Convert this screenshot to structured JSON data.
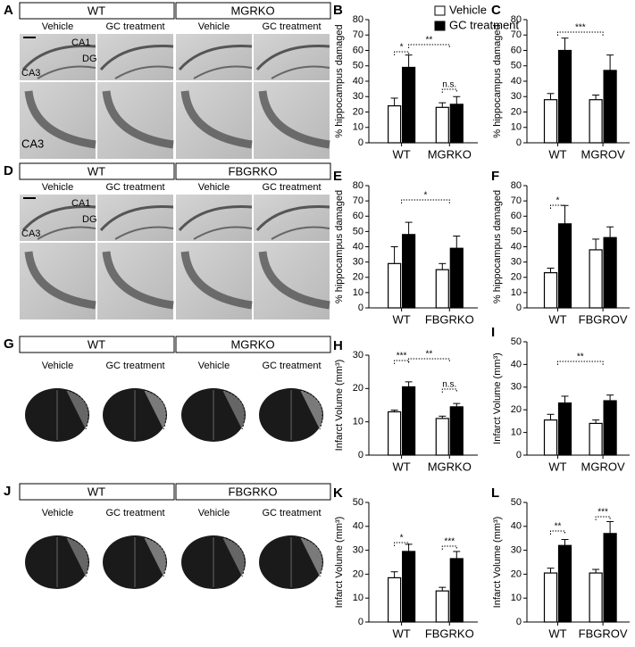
{
  "panels": [
    {
      "panel_label": "A",
      "groups": [
        "WT",
        "MGRKO"
      ],
      "conditions": [
        "Vehicle",
        "GC treatment",
        "Vehicle",
        "GC treatment"
      ],
      "regions": [
        "CA1",
        "DG",
        "CA3",
        "CA3"
      ]
    },
    {
      "panel_label": "D",
      "groups": [
        "WT",
        "FBGRKO"
      ],
      "conditions": [
        "Vehicle",
        "GC treatment",
        "Vehicle",
        "GC treatment"
      ],
      "regions": [
        "CA1",
        "DG",
        "CA3"
      ]
    },
    {
      "panel_label": "G",
      "groups": [
        "WT",
        "MGRKO"
      ],
      "conditions": [
        "Vehicle",
        "GC treatment",
        "Vehicle",
        "GC treatment"
      ]
    },
    {
      "panel_label": "J",
      "groups": [
        "WT",
        "FBGRKO"
      ],
      "conditions": [
        "Vehicle",
        "GC treatment",
        "Vehicle",
        "GC treatment"
      ]
    }
  ],
  "chart_data": [
    {
      "type": "bar",
      "panel_label": "B",
      "y_label": "% hippocampus damaged",
      "categories": [
        "WT",
        "MGRKO"
      ],
      "series": [
        {
          "name": "Vehicle",
          "color": "#ffffff",
          "values": [
            24,
            23
          ],
          "errors": [
            5,
            3
          ]
        },
        {
          "name": "GC treatment",
          "color": "#000000",
          "values": [
            49,
            25
          ],
          "errors": [
            8,
            5
          ]
        }
      ],
      "ylim": [
        0,
        80
      ],
      "yticks": [
        0,
        10,
        20,
        30,
        40,
        50,
        60,
        70,
        80
      ],
      "annotations": [
        "*",
        "**",
        "n.s."
      ]
    },
    {
      "type": "bar",
      "panel_label": "C",
      "y_label": "% hippocampus damaged",
      "categories": [
        "WT",
        "MGROV"
      ],
      "series": [
        {
          "color": "#ffffff",
          "values": [
            28,
            28
          ],
          "errors": [
            4,
            3
          ]
        },
        {
          "color": "#000000",
          "values": [
            60,
            47
          ],
          "errors": [
            8,
            10
          ]
        }
      ],
      "ylim": [
        0,
        80
      ],
      "yticks": [
        0,
        10,
        20,
        30,
        40,
        50,
        60,
        70,
        80
      ],
      "annotations": [
        "***"
      ]
    },
    {
      "type": "bar",
      "panel_label": "E",
      "y_label": "% hippocampus damaged",
      "categories": [
        "WT",
        "FBGRKO"
      ],
      "series": [
        {
          "color": "#ffffff",
          "values": [
            29,
            25
          ],
          "errors": [
            11,
            4
          ]
        },
        {
          "color": "#000000",
          "values": [
            48,
            39
          ],
          "errors": [
            8,
            8
          ]
        }
      ],
      "ylim": [
        0,
        80
      ],
      "yticks": [
        0,
        10,
        20,
        30,
        40,
        50,
        60,
        70,
        80
      ],
      "annotations": [
        "*"
      ]
    },
    {
      "type": "bar",
      "panel_label": "F",
      "y_label": "% hippocampus damaged",
      "categories": [
        "WT",
        "FBGROV"
      ],
      "series": [
        {
          "color": "#ffffff",
          "values": [
            23,
            38
          ],
          "errors": [
            3,
            7
          ]
        },
        {
          "color": "#000000",
          "values": [
            55,
            46
          ],
          "errors": [
            12,
            7
          ]
        }
      ],
      "ylim": [
        0,
        80
      ],
      "yticks": [
        0,
        10,
        20,
        30,
        40,
        50,
        60,
        70,
        80
      ],
      "annotations": [
        "*"
      ]
    },
    {
      "type": "bar",
      "panel_label": "H",
      "y_label": "Infarct Volume (mm³)",
      "categories": [
        "WT",
        "MGRKO"
      ],
      "series": [
        {
          "color": "#ffffff",
          "values": [
            13,
            11
          ],
          "errors": [
            0.5,
            0.7
          ]
        },
        {
          "color": "#000000",
          "values": [
            20.5,
            14.5
          ],
          "errors": [
            1.5,
            1
          ]
        }
      ],
      "ylim": [
        0,
        30
      ],
      "yticks": [
        0,
        10,
        20,
        30
      ],
      "annotations": [
        "***",
        "**",
        "n.s."
      ]
    },
    {
      "type": "bar",
      "panel_label": "I",
      "y_label": "Infarct Volume (mm³)",
      "categories": [
        "WT",
        "MGROV"
      ],
      "series": [
        {
          "color": "#ffffff",
          "values": [
            15.5,
            14
          ],
          "errors": [
            2.5,
            1.5
          ]
        },
        {
          "color": "#000000",
          "values": [
            23,
            24
          ],
          "errors": [
            3,
            2.5
          ]
        }
      ],
      "ylim": [
        0,
        50
      ],
      "yticks": [
        0,
        10,
        20,
        30,
        40,
        50
      ],
      "annotations": [
        "**"
      ]
    },
    {
      "type": "bar",
      "panel_label": "K",
      "y_label": "Infarct Volume (mm³)",
      "categories": [
        "WT",
        "FBGRKO"
      ],
      "series": [
        {
          "color": "#ffffff",
          "values": [
            18.5,
            13
          ],
          "errors": [
            2.5,
            1.5
          ]
        },
        {
          "color": "#000000",
          "values": [
            29.5,
            26.5
          ],
          "errors": [
            3,
            3
          ]
        }
      ],
      "ylim": [
        0,
        50
      ],
      "yticks": [
        0,
        10,
        20,
        30,
        40,
        50
      ],
      "annotations": [
        "*",
        "***"
      ]
    },
    {
      "type": "bar",
      "panel_label": "L",
      "y_label": "Infarct Volume (mm³)",
      "categories": [
        "WT",
        "FBGROV"
      ],
      "series": [
        {
          "color": "#ffffff",
          "values": [
            20.5,
            20.5
          ],
          "errors": [
            2,
            1.5
          ]
        },
        {
          "color": "#000000",
          "values": [
            32,
            37
          ],
          "errors": [
            2.5,
            5
          ]
        }
      ],
      "ylim": [
        0,
        50
      ],
      "yticks": [
        0,
        10,
        20,
        30,
        40,
        50
      ],
      "annotations": [
        "**",
        "***"
      ]
    }
  ]
}
